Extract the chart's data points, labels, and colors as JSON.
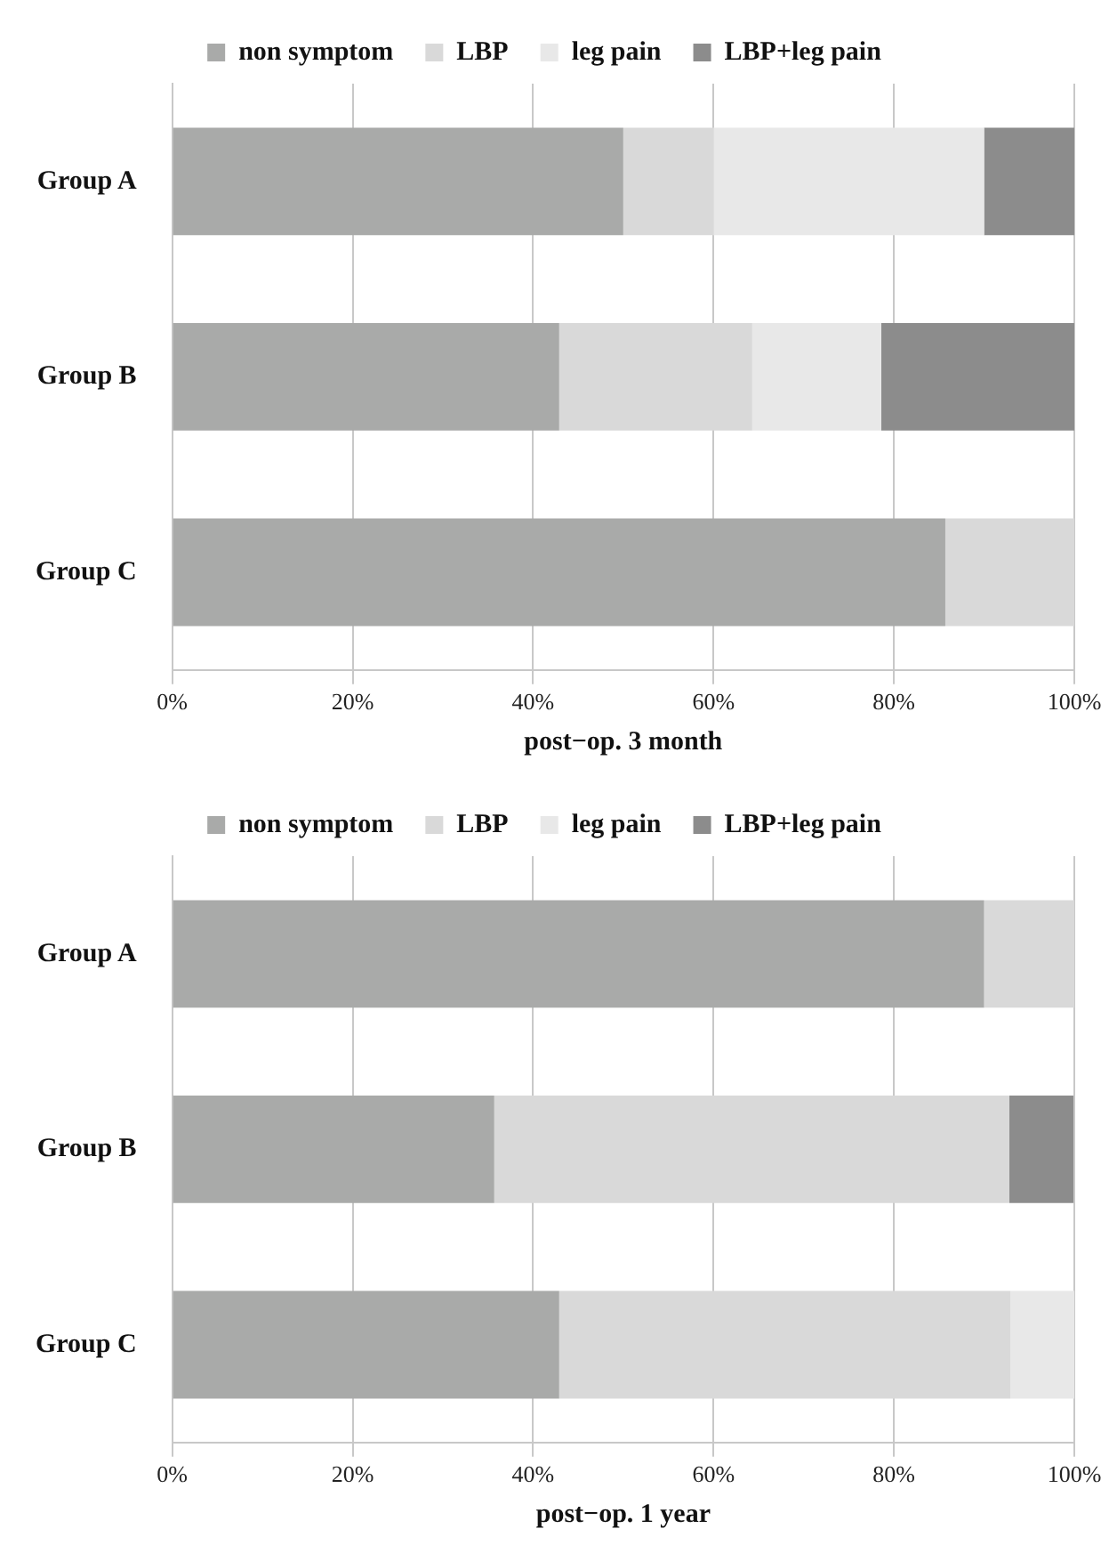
{
  "chart_data": [
    {
      "type": "bar",
      "orientation": "horizontal",
      "stacked": true,
      "xlabel": "post−op. 3 month",
      "categories": [
        "Group A",
        "Group B",
        "Group C"
      ],
      "series": [
        {
          "name": "non symptom",
          "color": "#a9aaa9",
          "values": [
            50,
            42.9,
            85.7
          ]
        },
        {
          "name": "LBP",
          "color": "#d9d9d9",
          "values": [
            10,
            21.4,
            14.3
          ]
        },
        {
          "name": "leg pain",
          "color": "#e8e8e8",
          "values": [
            30,
            14.3,
            0
          ]
        },
        {
          "name": "LBP+leg pain",
          "color": "#8c8c8c",
          "values": [
            10,
            21.4,
            0
          ]
        }
      ],
      "xlim": [
        0,
        100
      ],
      "xticks": [
        {
          "value": 0,
          "label": "0%"
        },
        {
          "value": 20,
          "label": "20%"
        },
        {
          "value": 40,
          "label": "40%"
        },
        {
          "value": 60,
          "label": "60%"
        },
        {
          "value": 80,
          "label": "80%"
        },
        {
          "value": 100,
          "label": "100%"
        }
      ],
      "grid": "x",
      "legend": "top"
    },
    {
      "type": "bar",
      "orientation": "horizontal",
      "stacked": true,
      "xlabel": "post−op. 1 year",
      "categories": [
        "Group A",
        "Group B",
        "Group C"
      ],
      "series": [
        {
          "name": "non symptom",
          "color": "#a9aaa9",
          "values": [
            90,
            35.7,
            42.9
          ]
        },
        {
          "name": "LBP",
          "color": "#d9d9d9",
          "values": [
            10,
            57.1,
            50
          ]
        },
        {
          "name": "leg pain",
          "color": "#e8e8e8",
          "values": [
            0,
            0,
            7.1
          ]
        },
        {
          "name": "LBP+leg pain",
          "color": "#8c8c8c",
          "values": [
            0,
            7.1,
            0
          ]
        }
      ],
      "xlim": [
        0,
        100
      ],
      "xticks": [
        {
          "value": 0,
          "label": "0%"
        },
        {
          "value": 20,
          "label": "20%"
        },
        {
          "value": 40,
          "label": "40%"
        },
        {
          "value": 60,
          "label": "60%"
        },
        {
          "value": 80,
          "label": "80%"
        },
        {
          "value": 100,
          "label": "100%"
        }
      ],
      "grid": "x",
      "legend": "top"
    }
  ]
}
